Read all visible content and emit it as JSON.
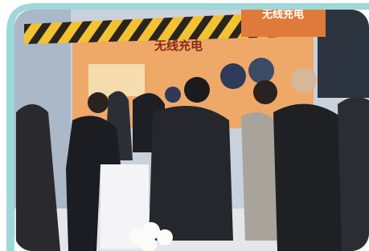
{
  "sign": {
    "text": "无线充电"
  },
  "banner": {
    "title": "无线充电"
  }
}
